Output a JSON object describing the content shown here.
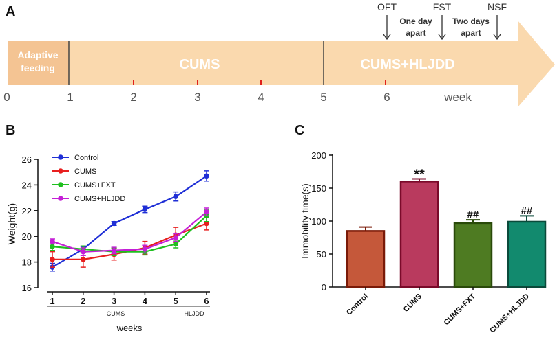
{
  "panels": {
    "a": {
      "label": "A"
    },
    "b": {
      "label": "B"
    },
    "c": {
      "label": "C"
    }
  },
  "timeline": {
    "stages": [
      "Adaptive\nfeeding",
      "CUMS",
      "CUMS+HLJDD"
    ],
    "ticks": [
      "0",
      "1",
      "2",
      "3",
      "4",
      "5",
      "6"
    ],
    "unit_label": "week",
    "events": [
      "OFT",
      "FST",
      "NSF"
    ],
    "intervals": [
      "One day\napart",
      "Two days\napart"
    ],
    "colors": {
      "arrow_fill": "#fad9ae",
      "arrow_band": "#f4c493",
      "red_tick": "#e0201b",
      "divider": "#444444"
    }
  },
  "chart_data": [
    {
      "id": "B",
      "type": "line",
      "title": "",
      "xlabel": "weeks",
      "ylabel": "Weight(g)",
      "x": [
        1,
        2,
        3,
        4,
        5,
        6
      ],
      "xlim": [
        1,
        6
      ],
      "ylim": [
        16,
        26
      ],
      "yticks": [
        16,
        18,
        20,
        22,
        24,
        26
      ],
      "grid": false,
      "legend_position": "top-left",
      "phase_labels": [
        "CUMS",
        "HLJDD"
      ],
      "series": [
        {
          "name": "Control",
          "color": "#1f2fd6",
          "values": [
            17.6,
            19.0,
            21.0,
            22.1,
            23.1,
            24.7
          ],
          "errors": [
            0.3,
            0.2,
            0.15,
            0.25,
            0.35,
            0.4
          ]
        },
        {
          "name": "CUMS",
          "color": "#e81f1f",
          "values": [
            18.2,
            18.2,
            18.6,
            19.1,
            20.1,
            21.0
          ],
          "errors": [
            0.6,
            0.6,
            0.45,
            0.5,
            0.6,
            0.5
          ]
        },
        {
          "name": "CUMS+FXT",
          "color": "#1fbf1f",
          "values": [
            19.2,
            19.0,
            18.8,
            18.8,
            19.4,
            21.6
          ],
          "errors": [
            0.3,
            0.25,
            0.3,
            0.25,
            0.3,
            0.45
          ]
        },
        {
          "name": "CUMS+HLJDD",
          "color": "#c41fd6",
          "values": [
            19.6,
            18.8,
            18.9,
            19.0,
            19.9,
            21.9
          ],
          "errors": [
            0.2,
            0.3,
            0.25,
            0.3,
            0.3,
            0.3
          ]
        }
      ]
    },
    {
      "id": "C",
      "type": "bar",
      "title": "",
      "xlabel": "",
      "ylabel": "Immobility time(s)",
      "categories": [
        "Control",
        "CUMS",
        "CUMS+FXT",
        "CUMS+HLJDD"
      ],
      "values": [
        85,
        160,
        97,
        99
      ],
      "errors": [
        6,
        4,
        5,
        9
      ],
      "annotations": [
        "",
        "**",
        "##",
        "##"
      ],
      "colors": [
        "#c5583a",
        "#b93a5e",
        "#4e7b22",
        "#128a6e"
      ],
      "edge_colors": [
        "#7a1a08",
        "#7a0a2a",
        "#2a4a0a",
        "#0a4a3a"
      ],
      "ylim": [
        0,
        200
      ],
      "yticks": [
        0,
        50,
        100,
        150,
        200
      ],
      "grid": false
    }
  ]
}
